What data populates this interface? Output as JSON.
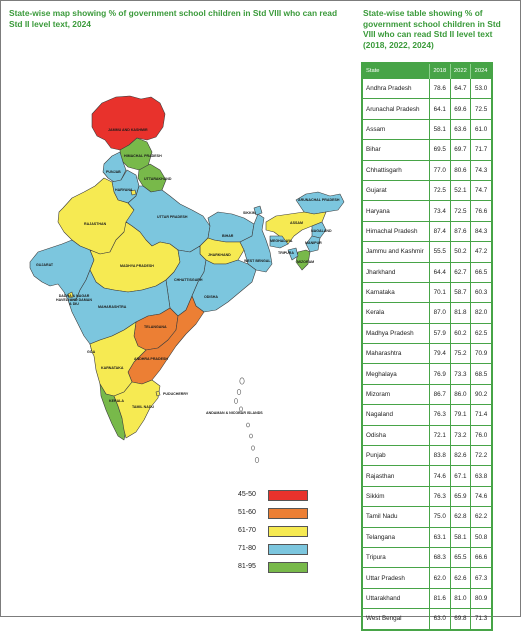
{
  "map": {
    "title": "State-wise map showing % of government school children in Std VIII who can read Std II level text, 2024",
    "labels": {
      "jk": "JAMMU AND KASHMIR",
      "hp": "HIMACHAL PRADESH",
      "pb": "PUNJAB",
      "uk": "UTTARAKHAND",
      "hr": "HARYANA",
      "rj": "RAJASTHAN",
      "up": "UTTAR PRADESH",
      "bh": "BIHAR",
      "sk": "SIKKIM",
      "ar": "ARUNACHAL PRADESH",
      "as": "ASSAM",
      "nl": "NAGALAND",
      "ml": "MEGHALAYA",
      "mn": "MANIPUR",
      "mz": "MIZORAM",
      "tr": "TRIPURA",
      "jh": "JHARKHAND",
      "wb": "WEST BENGAL",
      "gj": "GUJARAT",
      "mp": "MADHYA PRADESH",
      "cg": "CHHATTISGARH",
      "od": "ODISHA",
      "dnh": "DADRA & NAGAR HAVELI AND DAMAN & DIU",
      "mh": "MAHARASHTRA",
      "tg": "TELANGANA",
      "ap": "ANDHRA PRADESH",
      "ka": "KARNATAKA",
      "goa": "GOA",
      "kl": "KERALA",
      "tn": "TAMIL NADU",
      "py": "PUDUCHERRY",
      "an": "ANDAMAN & NICOBAR ISLANDS"
    },
    "legend": [
      {
        "label": "45-50",
        "color": "#e8322c"
      },
      {
        "label": "51-60",
        "color": "#ec7f34"
      },
      {
        "label": "61-70",
        "color": "#f6ea52"
      },
      {
        "label": "71-80",
        "color": "#7cc6de"
      },
      {
        "label": "81-95",
        "color": "#78b94a"
      }
    ]
  },
  "table": {
    "title": "State-wise table showing % of government school children in Std VIII who can read Std II level text",
    "years_line": "(2018, 2022, 2024)",
    "headers": [
      "State",
      "2018",
      "2022",
      "2024"
    ],
    "rows": [
      [
        "Andhra Pradesh",
        "78.6",
        "64.7",
        "53.0"
      ],
      [
        "Arunachal Pradesh",
        "64.1",
        "69.6",
        "72.5"
      ],
      [
        "Assam",
        "58.1",
        "63.6",
        "61.0"
      ],
      [
        "Bihar",
        "69.5",
        "69.7",
        "71.7"
      ],
      [
        "Chhattisgarh",
        "77.0",
        "80.6",
        "74.3"
      ],
      [
        "Gujarat",
        "72.5",
        "52.1",
        "74.7"
      ],
      [
        "Haryana",
        "73.4",
        "72.5",
        "76.6"
      ],
      [
        "Himachal Pradesh",
        "87.4",
        "87.6",
        "84.3"
      ],
      [
        "Jammu and Kashmir",
        "55.5",
        "50.2",
        "47.2"
      ],
      [
        "Jharkhand",
        "64.4",
        "62.7",
        "66.5"
      ],
      [
        "Karnataka",
        "70.1",
        "58.7",
        "60.3"
      ],
      [
        "Kerala",
        "87.0",
        "81.8",
        "82.0"
      ],
      [
        "Madhya Pradesh",
        "57.9",
        "60.2",
        "62.5"
      ],
      [
        "Maharashtra",
        "79.4",
        "75.2",
        "70.9"
      ],
      [
        "Meghalaya",
        "76.9",
        "73.3",
        "68.5"
      ],
      [
        "Mizoram",
        "86.7",
        "86.0",
        "90.2"
      ],
      [
        "Nagaland",
        "76.3",
        "79.1",
        "71.4"
      ],
      [
        "Odisha",
        "72.1",
        "73.2",
        "76.0"
      ],
      [
        "Punjab",
        "83.8",
        "82.6",
        "72.2"
      ],
      [
        "Rajasthan",
        "74.6",
        "67.1",
        "63.8"
      ],
      [
        "Sikkim",
        "76.3",
        "65.9",
        "74.6"
      ],
      [
        "Tamil Nadu",
        "75.0",
        "62.8",
        "62.2"
      ],
      [
        "Telangana",
        "63.1",
        "58.1",
        "50.8"
      ],
      [
        "Tripura",
        "68.3",
        "65.5",
        "66.6"
      ],
      [
        "Uttar Pradesh",
        "62.0",
        "62.6",
        "67.3"
      ],
      [
        "Uttarakhand",
        "81.6",
        "81.0",
        "80.9"
      ],
      [
        "West Bengal",
        "63.0",
        "69.8",
        "71.3"
      ]
    ]
  }
}
